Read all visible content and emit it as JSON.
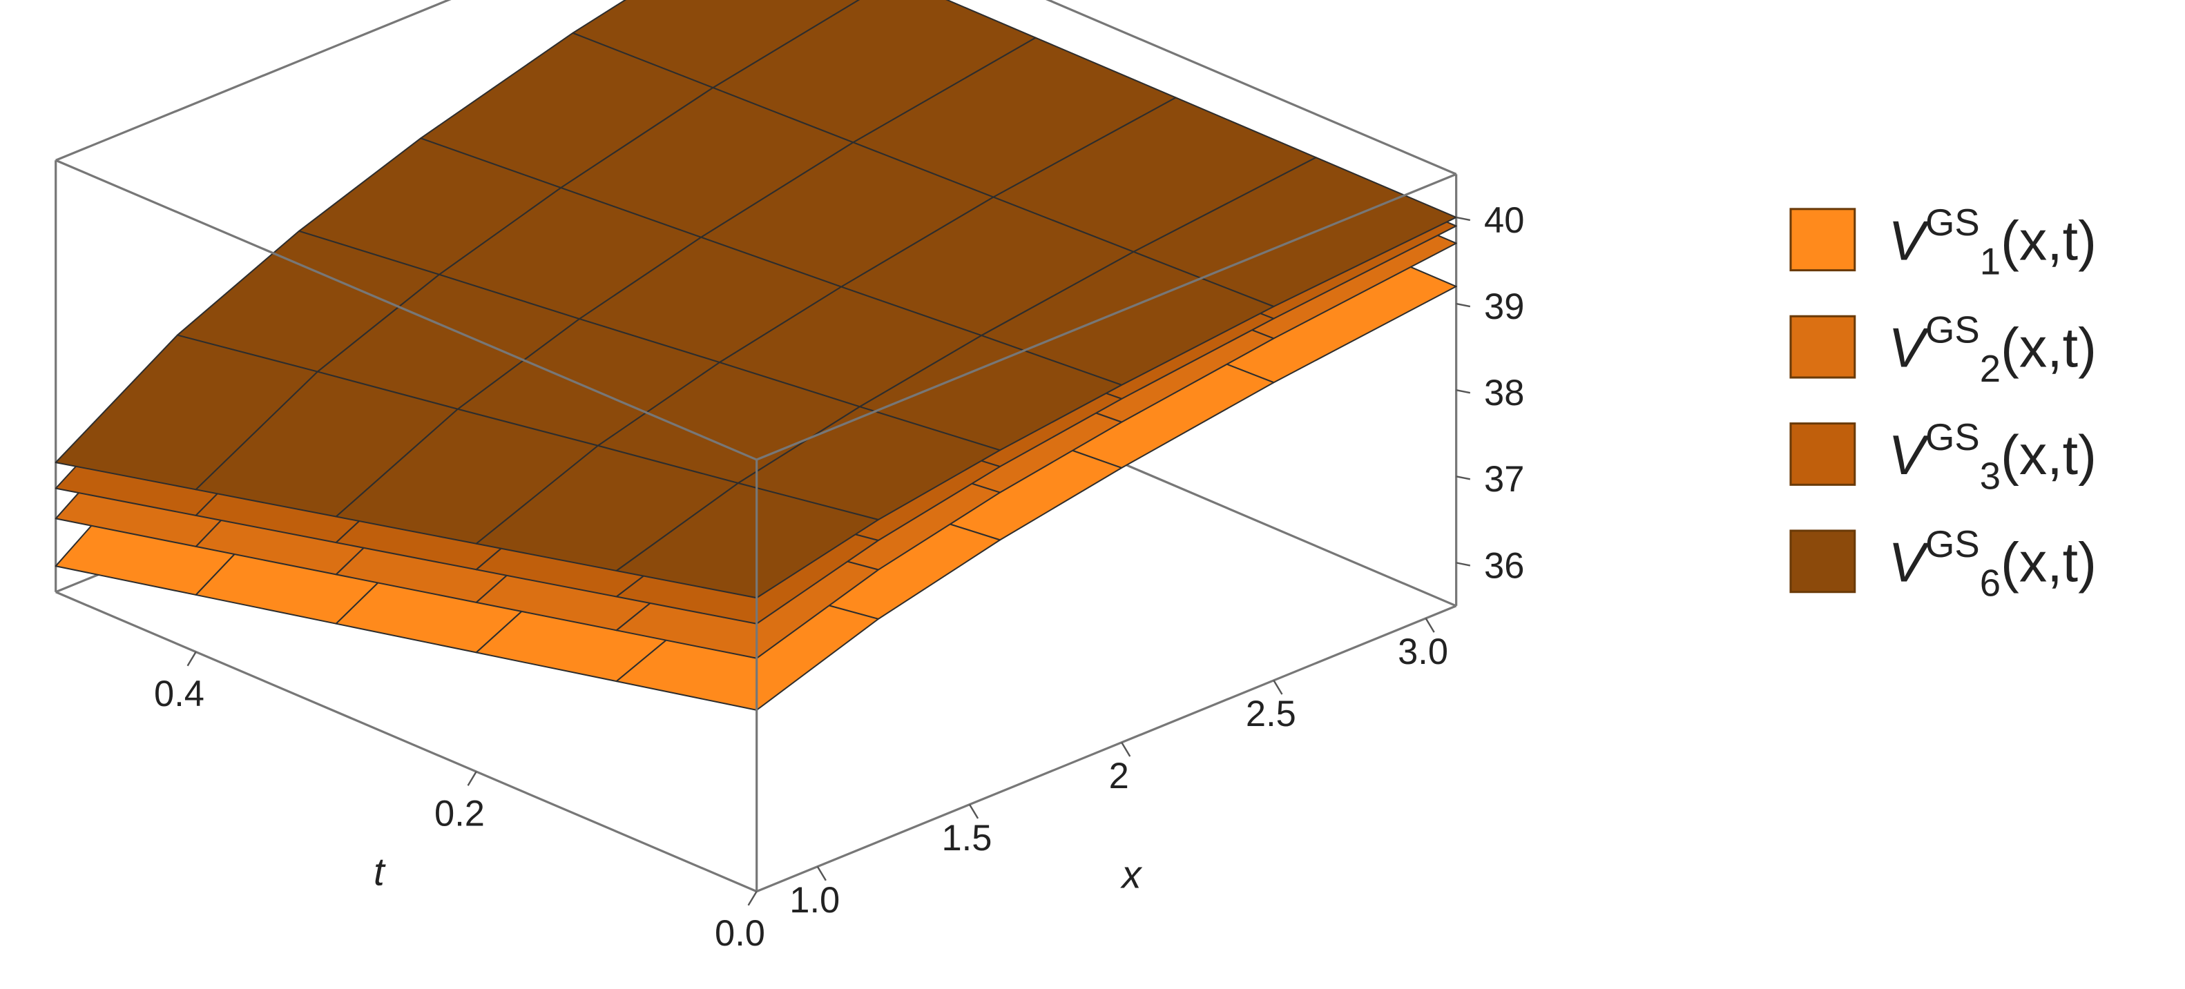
{
  "chart_data": {
    "type": "surface3d",
    "x_label": "x",
    "t_label": "t",
    "x": [
      0.8,
      1.2,
      1.6,
      2.0,
      2.5,
      3.1
    ],
    "t": [
      0,
      0.1,
      0.2,
      0.3,
      0.4,
      0.5
    ],
    "xlim": [
      0.8,
      3.1
    ],
    "tlim": [
      0,
      0.5
    ],
    "zlim": [
      35.5,
      40.5
    ],
    "xticks": [
      {
        "value": 1,
        "label": "1.0"
      },
      1.5,
      2,
      2.5,
      {
        "value": 3,
        "label": "3.0"
      }
    ],
    "tticks": [
      {
        "value": 0,
        "label": "0.0"
      },
      0.2,
      0.4
    ],
    "zticks": [
      36,
      37,
      38,
      39,
      40
    ],
    "mesh": true,
    "legend": "right",
    "series": [
      {
        "name": [
          "V",
          "GS",
          "1",
          "(x,t)"
        ],
        "color": "#ff8a1c",
        "values": [
          [
            37.6,
            38.08,
            38.42,
            38.68,
            38.95,
            39.2
          ],
          [
            37.24,
            37.83,
            38.24,
            38.56,
            38.89,
            39.2
          ],
          [
            36.88,
            37.58,
            38.07,
            38.45,
            38.84,
            39.2
          ],
          [
            36.52,
            37.32,
            37.89,
            38.33,
            38.78,
            39.2
          ],
          [
            36.16,
            37.07,
            37.72,
            38.21,
            38.72,
            39.2
          ],
          [
            35.8,
            36.82,
            37.54,
            38.09,
            38.66,
            39.2
          ]
        ]
      },
      {
        "name": [
          "V",
          "GS",
          "2",
          "(x,t)"
        ],
        "color": "#db7013",
        "values": [
          [
            38.2,
            38.65,
            38.97,
            39.21,
            39.46,
            39.7
          ],
          [
            37.83,
            38.39,
            38.79,
            39.09,
            39.4,
            39.7
          ],
          [
            37.46,
            38.13,
            38.61,
            38.97,
            39.34,
            39.7
          ],
          [
            37.09,
            37.87,
            38.43,
            38.85,
            39.28,
            39.7
          ],
          [
            36.72,
            37.61,
            38.25,
            38.73,
            39.22,
            39.7
          ],
          [
            36.35,
            37.36,
            38.07,
            38.61,
            39.17,
            39.7
          ]
        ]
      },
      {
        "name": [
          "V",
          "GS",
          "3",
          "(x,t)"
        ],
        "color": "#c05f0c",
        "values": [
          [
            38.6,
            38.99,
            39.27,
            39.48,
            39.69,
            39.9
          ],
          [
            38.22,
            38.72,
            39.08,
            39.36,
            39.63,
            39.9
          ],
          [
            37.84,
            38.46,
            38.9,
            39.23,
            39.57,
            39.9
          ],
          [
            37.46,
            38.19,
            38.71,
            39.11,
            39.51,
            39.9
          ],
          [
            37.08,
            37.93,
            38.53,
            38.99,
            39.45,
            39.9
          ],
          [
            36.7,
            37.66,
            38.34,
            38.86,
            39.39,
            39.9
          ]
        ]
      },
      {
        "name": [
          "V",
          "GS",
          "6",
          "(x,t)"
        ],
        "color": "#8c4a0b",
        "values": [
          [
            38.9,
            39.23,
            39.46,
            39.64,
            39.83,
            40.0
          ],
          [
            38.52,
            38.96,
            39.27,
            39.52,
            39.77,
            40.0
          ],
          [
            38.14,
            38.7,
            39.09,
            39.39,
            39.71,
            40.0
          ],
          [
            37.76,
            38.43,
            38.9,
            39.27,
            39.65,
            40.0
          ],
          [
            37.38,
            38.17,
            38.72,
            39.15,
            39.59,
            40.0
          ],
          [
            37.0,
            37.9,
            38.53,
            39.03,
            39.53,
            40.0
          ]
        ]
      }
    ]
  }
}
